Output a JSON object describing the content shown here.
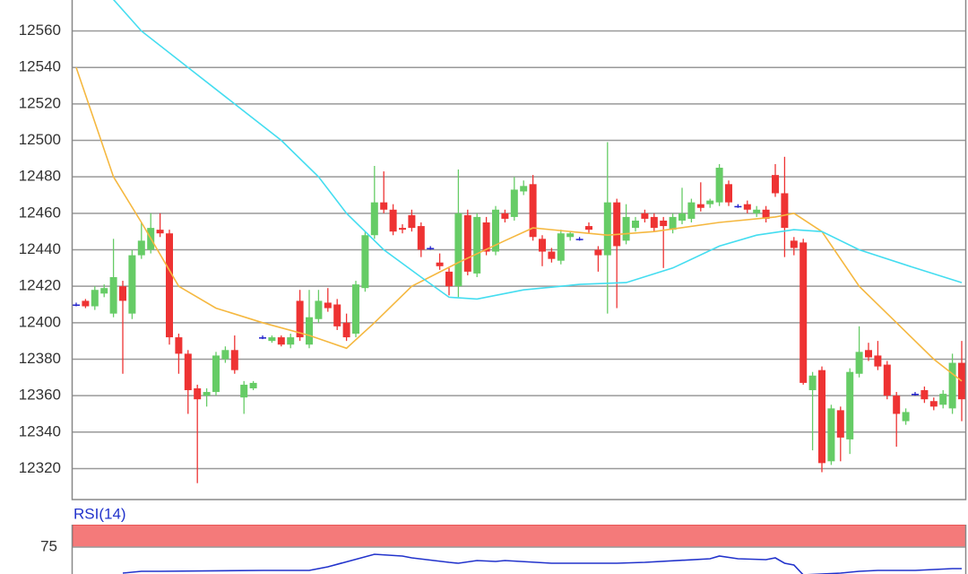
{
  "chart_data": {
    "type": "candlestick",
    "ylim": [
      12303,
      12577
    ],
    "yticks": [
      12320,
      12340,
      12360,
      12380,
      12400,
      12420,
      12440,
      12460,
      12480,
      12500,
      12520,
      12540,
      12560
    ],
    "grid": true,
    "up_color": "#66cc66",
    "down_color": "#ee3333",
    "flat_color": "#2222cc",
    "open": [
      12410,
      12412,
      12409,
      12416,
      12405,
      12420,
      12405,
      12437,
      12440,
      12451,
      12449,
      12392,
      12383,
      12364,
      12360,
      12362,
      12380,
      12385,
      12359,
      12364,
      12392,
      12390,
      12392,
      12388,
      12412,
      12388,
      12402,
      12411,
      12410,
      12400,
      12394,
      12419,
      12448,
      12466,
      12462,
      12452,
      12459,
      12453,
      12441,
      12433,
      12428,
      12420,
      12459,
      12427,
      12455,
      12439,
      12460,
      12458,
      12472,
      12476,
      12446,
      12439,
      12434,
      12447,
      12446,
      12453,
      12440,
      12437,
      12466,
      12445,
      12452,
      12460,
      12458,
      12456,
      12451,
      12456,
      12457,
      12465,
      12465,
      12466,
      12476,
      12464,
      12465,
      12460,
      12462,
      12481,
      12471,
      12445,
      12444,
      12363,
      12374,
      12324,
      12352,
      12336,
      12372,
      12385,
      12382,
      12377,
      12360,
      12346,
      12361,
      12363,
      12357,
      12355,
      12353,
      12378
    ],
    "high": [
      12411,
      12413,
      12420,
      12421,
      12446,
      12423,
      12440,
      12455,
      12460,
      12460,
      12451,
      12394,
      12385,
      12366,
      12364,
      12384,
      12387,
      12393,
      12368,
      12368,
      12393,
      12393,
      12393,
      12394,
      12418,
      12418,
      12418,
      12419,
      12413,
      12405,
      12423,
      12450,
      12486,
      12483,
      12465,
      12454,
      12462,
      12455,
      12442,
      12438,
      12430,
      12484,
      12462,
      12460,
      12458,
      12464,
      12462,
      12480,
      12478,
      12481,
      12448,
      12441,
      12451,
      12450,
      12447,
      12455,
      12442,
      12499,
      12468,
      12465,
      12458,
      12462,
      12460,
      12458,
      12460,
      12474,
      12468,
      12477,
      12468,
      12487,
      12478,
      12465,
      12467,
      12464,
      12464,
      12487,
      12491,
      12447,
      12446,
      12373,
      12376,
      12355,
      12354,
      12375,
      12398,
      12389,
      12390,
      12379,
      12362,
      12353,
      12362,
      12365,
      12359,
      12363,
      12383,
      12390
    ],
    "low": [
      12409,
      12408,
      12407,
      12414,
      12403,
      12372,
      12402,
      12435,
      12438,
      12447,
      12388,
      12372,
      12350,
      12312,
      12354,
      12360,
      12378,
      12372,
      12350,
      12363,
      12391,
      12389,
      12387,
      12386,
      12390,
      12386,
      12400,
      12406,
      12396,
      12390,
      12392,
      12417,
      12446,
      12460,
      12448,
      12449,
      12450,
      12436,
      12440,
      12429,
      12415,
      12414,
      12426,
      12425,
      12437,
      12437,
      12455,
      12456,
      12470,
      12445,
      12431,
      12433,
      12432,
      12445,
      12445,
      12449,
      12428,
      12405,
      12408,
      12443,
      12450,
      12455,
      12450,
      12430,
      12449,
      12454,
      12455,
      12461,
      12463,
      12464,
      12464,
      12463,
      12460,
      12458,
      12455,
      12469,
      12436,
      12437,
      12366,
      12330,
      12318,
      12322,
      12324,
      12328,
      12370,
      12379,
      12374,
      12358,
      12332,
      12344,
      12360,
      12356,
      12352,
      12353,
      12350,
      12346
    ],
    "close": [
      12410,
      12409,
      12418,
      12419,
      12425,
      12412,
      12437,
      12445,
      12452,
      12449,
      12392,
      12383,
      12363,
      12358,
      12362,
      12382,
      12385,
      12374,
      12366,
      12367,
      12392,
      12392,
      12388,
      12392,
      12392,
      12403,
      12412,
      12408,
      12398,
      12392,
      12421,
      12448,
      12466,
      12462,
      12450,
      12451,
      12452,
      12440,
      12441,
      12431,
      12420,
      12460,
      12428,
      12458,
      12439,
      12462,
      12457,
      12473,
      12475,
      12447,
      12439,
      12435,
      12449,
      12449,
      12446,
      12451,
      12437,
      12466,
      12442,
      12458,
      12456,
      12457,
      12452,
      12453,
      12458,
      12460,
      12466,
      12463,
      12467,
      12485,
      12466,
      12464,
      12462,
      12462,
      12457,
      12471,
      12452,
      12441,
      12367,
      12371,
      12323,
      12353,
      12337,
      12373,
      12384,
      12381,
      12376,
      12360,
      12350,
      12351,
      12361,
      12358,
      12354,
      12361,
      12378,
      12358
    ],
    "moving_averages": [
      {
        "color": "#f5b840",
        "x": [
          0,
          4,
          7,
          11,
          15,
          20,
          25,
          29,
          32,
          36,
          41,
          46,
          49,
          57,
          62,
          69,
          75,
          77,
          80,
          84,
          88,
          92,
          95
        ],
        "values": [
          12540,
          12480,
          12455,
          12420,
          12408,
          12400,
          12393,
          12386,
          12400,
          12420,
          12433,
          12445,
          12452,
          12448,
          12450,
          12455,
          12458,
          12460,
          12450,
          12420,
          12400,
          12380,
          12368
        ]
      },
      {
        "color": "#44ddf0",
        "x": [
          3,
          7,
          12,
          17,
          22,
          26,
          29,
          33,
          37,
          40,
          43,
          48,
          54,
          59,
          64,
          69,
          73,
          77,
          80,
          84,
          90,
          95
        ],
        "values": [
          12583,
          12560,
          12540,
          12520,
          12500,
          12480,
          12460,
          12440,
          12425,
          12414,
          12413,
          12418,
          12421,
          12422,
          12430,
          12442,
          12448,
          12451,
          12450,
          12440,
          12430,
          12422
        ]
      }
    ],
    "rsi": {
      "label": "RSI(14)",
      "ylim": [
        45,
        100
      ],
      "yticks": [
        75
      ],
      "band": [
        75,
        100
      ],
      "band_color": "#f47a7a",
      "color": "#2233cc",
      "x": [
        5,
        7,
        9,
        20,
        25,
        27,
        32,
        35,
        36,
        40,
        41,
        43,
        45,
        46,
        51,
        58,
        61,
        68,
        69,
        71,
        74,
        75,
        76,
        77,
        78,
        82,
        84,
        86,
        90,
        92,
        94,
        95
      ],
      "values": [
        46,
        48,
        48,
        49,
        49,
        53,
        67,
        65,
        63,
        58,
        57,
        60,
        59,
        60,
        57,
        57,
        58,
        62,
        65,
        62,
        61,
        63,
        57,
        55,
        44,
        46,
        48,
        49,
        49,
        50,
        51,
        51
      ]
    }
  }
}
